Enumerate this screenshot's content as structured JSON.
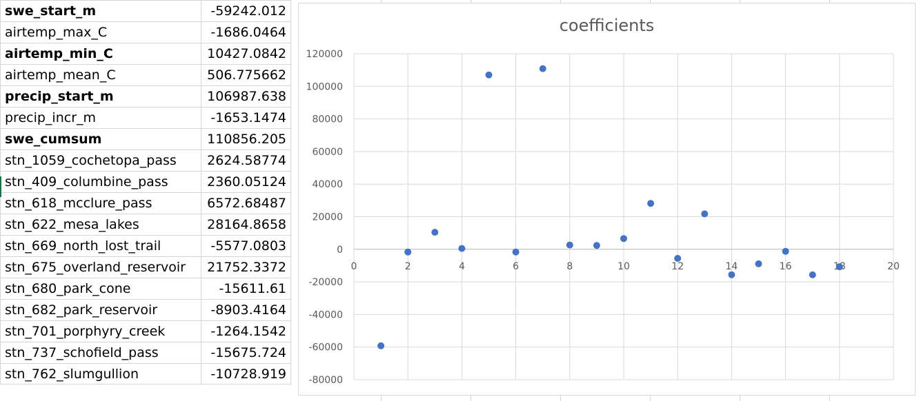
{
  "table": {
    "rows": [
      {
        "name": "swe_start_m",
        "value": "-59242.012",
        "bold": true
      },
      {
        "name": "airtemp_max_C",
        "value": "-1686.0464",
        "bold": false
      },
      {
        "name": "airtemp_min_C",
        "value": "10427.0842",
        "bold": true
      },
      {
        "name": "airtemp_mean_C",
        "value": "506.775662",
        "bold": false
      },
      {
        "name": "precip_start_m",
        "value": "106987.638",
        "bold": true
      },
      {
        "name": "precip_incr_m",
        "value": "-1653.1474",
        "bold": false
      },
      {
        "name": "swe_cumsum",
        "value": "110856.205",
        "bold": true
      },
      {
        "name": "stn_1059_cochetopa_pass",
        "value": "2624.58774",
        "bold": false
      },
      {
        "name": "stn_409_columbine_pass",
        "value": "2360.05124",
        "bold": false
      },
      {
        "name": "stn_618_mcclure_pass",
        "value": "6572.68487",
        "bold": false
      },
      {
        "name": "stn_622_mesa_lakes",
        "value": "28164.8658",
        "bold": false
      },
      {
        "name": "stn_669_north_lost_trail",
        "value": "-5577.0803",
        "bold": false
      },
      {
        "name": "stn_675_overland_reservoir",
        "value": "21752.3372",
        "bold": false
      },
      {
        "name": "stn_680_park_cone",
        "value": "-15611.61",
        "bold": false
      },
      {
        "name": "stn_682_park_reservoir",
        "value": "-8903.4164",
        "bold": false
      },
      {
        "name": "stn_701_porphyry_creek",
        "value": "-1264.1542",
        "bold": false
      },
      {
        "name": "stn_737_schofield_pass",
        "value": "-15675.724",
        "bold": false
      },
      {
        "name": "stn_762_slumgullion",
        "value": "-10728.919",
        "bold": false
      }
    ]
  },
  "chart_data": {
    "type": "scatter",
    "title": "coefficients",
    "xlabel": "",
    "ylabel": "",
    "xlim": [
      0,
      20
    ],
    "ylim": [
      -80000,
      120000
    ],
    "x_ticks": [
      0,
      2,
      4,
      6,
      8,
      10,
      12,
      14,
      16,
      18,
      20
    ],
    "y_ticks": [
      -80000,
      -60000,
      -40000,
      -20000,
      0,
      20000,
      40000,
      60000,
      80000,
      100000,
      120000
    ],
    "grid": true,
    "marker_color": "#4472c4",
    "points": [
      {
        "x": 1,
        "y": -59242.012
      },
      {
        "x": 2,
        "y": -1686.0464
      },
      {
        "x": 3,
        "y": 10427.0842
      },
      {
        "x": 4,
        "y": 506.775662
      },
      {
        "x": 5,
        "y": 106987.638
      },
      {
        "x": 6,
        "y": -1653.1474
      },
      {
        "x": 7,
        "y": 110856.205
      },
      {
        "x": 8,
        "y": 2624.58774
      },
      {
        "x": 9,
        "y": 2360.05124
      },
      {
        "x": 10,
        "y": 6572.68487
      },
      {
        "x": 11,
        "y": 28164.8658
      },
      {
        "x": 12,
        "y": -5577.0803
      },
      {
        "x": 13,
        "y": 21752.3372
      },
      {
        "x": 14,
        "y": -15611.61
      },
      {
        "x": 15,
        "y": -8903.4164
      },
      {
        "x": 16,
        "y": -1264.1542
      },
      {
        "x": 17,
        "y": -15675.724
      },
      {
        "x": 18,
        "y": -10728.919
      }
    ]
  }
}
